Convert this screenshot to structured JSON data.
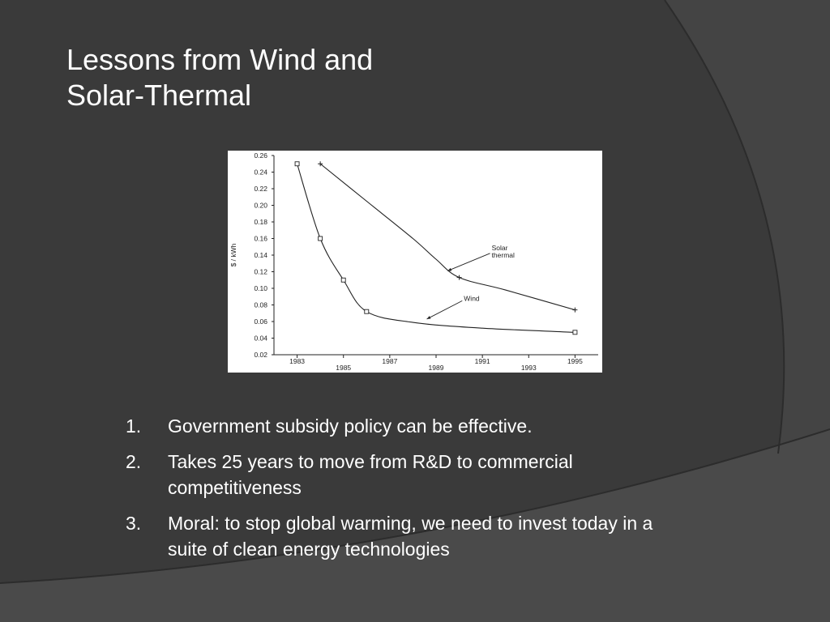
{
  "slide": {
    "title_line1": "Lessons from Wind and",
    "title_line2": "Solar-Thermal"
  },
  "bullets": [
    {
      "num": "1.",
      "text": "Government subsidy policy can be effective."
    },
    {
      "num": "2.",
      "text": "Takes 25 years to move from R&D to commercial competitiveness"
    },
    {
      "num": "3.",
      "text": "Moral: to stop global warming, we need to invest today in a suite of clean energy technologies"
    }
  ],
  "colors": {
    "background": "#3a3a3a",
    "arc": "#4e4e4e",
    "text": "#ffffff",
    "line": "#222222"
  },
  "chart_data": {
    "type": "line",
    "ylabel": "$ / kWh",
    "xlabel": "",
    "xlim": [
      1982,
      1996
    ],
    "ylim": [
      0.02,
      0.26
    ],
    "y_ticks": [
      0.02,
      0.04,
      0.06,
      0.08,
      0.1,
      0.12,
      0.14,
      0.16,
      0.18,
      0.2,
      0.22,
      0.24,
      0.26
    ],
    "y_tick_labels": [
      "0.02",
      "0.04",
      "0.06",
      "0.08",
      "0.10",
      "0.12",
      "0.14",
      "0.16",
      "0.18",
      "0.20",
      "0.22",
      "0.24",
      "0.26"
    ],
    "x_ticks_upper": [
      1983,
      1987,
      1991,
      1995
    ],
    "x_ticks_lower": [
      1985,
      1989,
      1993
    ],
    "grid": false,
    "series": [
      {
        "name": "Wind",
        "marker": "square",
        "points": [
          [
            1983,
            0.25
          ],
          [
            1984,
            0.16
          ],
          [
            1985,
            0.11
          ],
          [
            1986,
            0.072
          ],
          [
            1988,
            0.059
          ],
          [
            1991,
            0.052
          ],
          [
            1995,
            0.047
          ]
        ],
        "marked_x": [
          1983,
          1984,
          1985,
          1986,
          1995
        ]
      },
      {
        "name": "Solar thermal",
        "marker": "plus",
        "points": [
          [
            1984,
            0.25
          ],
          [
            1986,
            0.205
          ],
          [
            1988,
            0.16
          ],
          [
            1989,
            0.135
          ],
          [
            1990,
            0.113
          ],
          [
            1992,
            0.098
          ],
          [
            1995,
            0.074
          ]
        ],
        "marked_x": [
          1984,
          1990,
          1995
        ]
      }
    ],
    "annotations": [
      {
        "text_lines": [
          "Solar",
          "thermal"
        ],
        "x": 1991.4,
        "y": 0.146,
        "arrow_to": [
          1989.5,
          0.121
        ]
      },
      {
        "text_lines": [
          "Wind"
        ],
        "x": 1990.2,
        "y": 0.085,
        "arrow_to": [
          1988.6,
          0.063
        ]
      }
    ]
  }
}
